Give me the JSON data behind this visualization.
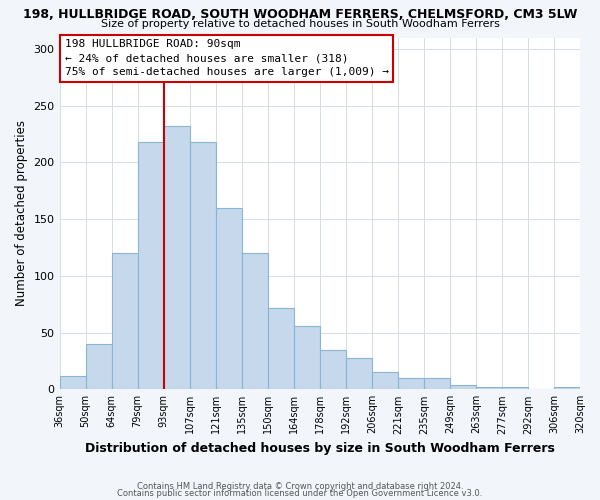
{
  "title": "198, HULLBRIDGE ROAD, SOUTH WOODHAM FERRERS, CHELMSFORD, CM3 5LW",
  "subtitle": "Size of property relative to detached houses in South Woodham Ferrers",
  "xlabel": "Distribution of detached houses by size in South Woodham Ferrers",
  "ylabel": "Number of detached properties",
  "bar_values": [
    12,
    40,
    120,
    218,
    232,
    218,
    160,
    120,
    72,
    56,
    35,
    28,
    15,
    10,
    10,
    4,
    2,
    2,
    0,
    2
  ],
  "bar_labels": [
    "36sqm",
    "50sqm",
    "64sqm",
    "79sqm",
    "93sqm",
    "107sqm",
    "121sqm",
    "135sqm",
    "150sqm",
    "164sqm",
    "178sqm",
    "192sqm",
    "206sqm",
    "221sqm",
    "235sqm",
    "249sqm",
    "263sqm",
    "277sqm",
    "292sqm",
    "306sqm",
    "320sqm"
  ],
  "bar_color": "#c6d9ec",
  "bar_edge_color": "#8ab4d4",
  "vline_x": 4.0,
  "vline_color": "#cc0000",
  "ylim": [
    0,
    310
  ],
  "yticks": [
    0,
    50,
    100,
    150,
    200,
    250,
    300
  ],
  "annotation_line1": "198 HULLBRIDGE ROAD: 90sqm",
  "annotation_line2": "← 24% of detached houses are smaller (318)",
  "annotation_line3": "75% of semi-detached houses are larger (1,009) →",
  "footer1": "Contains HM Land Registry data © Crown copyright and database right 2024.",
  "footer2": "Contains public sector information licensed under the Open Government Licence v3.0.",
  "background_color": "#f2f6fa",
  "plot_background": "#ffffff",
  "grid_color": "#d5dde5"
}
